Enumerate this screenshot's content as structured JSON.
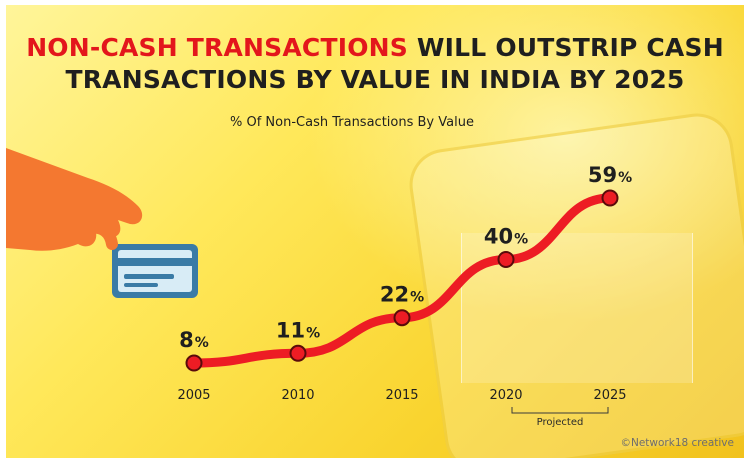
{
  "title": {
    "highlight": "NON-CASH TRANSACTIONS",
    "rest_line1": " WILL OUTSTRIP CASH",
    "line2": "TRANSACTIONS BY VALUE IN INDIA BY 2025"
  },
  "credit": "©Network18 creative",
  "colors": {
    "accent": "#e3161c",
    "line": "#ed1c24",
    "text": "#1f1f1f",
    "background": "#f7d42f"
  },
  "icons": [
    "hand-icon",
    "credit-card-icon"
  ],
  "chart_data": {
    "type": "line",
    "title": "% Of Non-Cash Transactions By Value",
    "x": [
      "2005",
      "2010",
      "2015",
      "2020",
      "2025"
    ],
    "series": [
      {
        "values": [
          8,
          11,
          22,
          40,
          59
        ],
        "value_labels": [
          "8",
          "11",
          "22",
          "40",
          "59"
        ],
        "unit": "%"
      }
    ],
    "projected": {
      "label": "Projected",
      "from": "2020",
      "to": "2025"
    },
    "ylim": [
      0,
      60
    ],
    "grid": false
  }
}
